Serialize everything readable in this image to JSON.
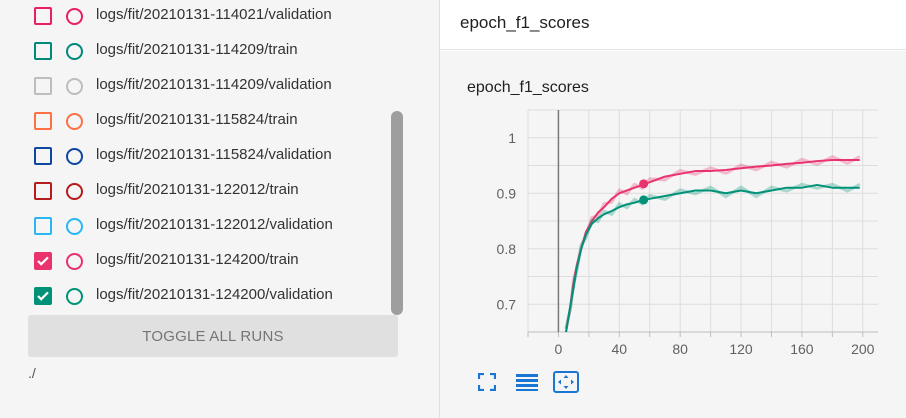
{
  "runs": [
    {
      "label": "logs/fit/20210131-114021/validation",
      "color": "#e91e63",
      "checked": false
    },
    {
      "label": "logs/fit/20210131-114209/train",
      "color": "#00897b",
      "checked": false
    },
    {
      "label": "logs/fit/20210131-114209/validation",
      "color": "#bdbdbd",
      "checked": false
    },
    {
      "label": "logs/fit/20210131-115824/train",
      "color": "#ff7043",
      "checked": false
    },
    {
      "label": "logs/fit/20210131-115824/validation",
      "color": "#0d47a1",
      "checked": false
    },
    {
      "label": "logs/fit/20210131-122012/train",
      "color": "#b71c1c",
      "checked": false
    },
    {
      "label": "logs/fit/20210131-122012/validation",
      "color": "#29b6f6",
      "checked": false
    },
    {
      "label": "logs/fit/20210131-124200/train",
      "color": "#e8336c",
      "checked": true
    },
    {
      "label": "logs/fit/20210131-124200/validation",
      "color": "#009278",
      "checked": true
    }
  ],
  "toggle_button": "TOGGLE ALL RUNS",
  "log_path": "./",
  "card": {
    "title": "epoch_f1_scores"
  },
  "toolbar": {
    "fullscreen_icon": "fullscreen-icon",
    "legend_icon": "toggle-log-scale-icon",
    "fit_icon": "fit-domain-icon"
  },
  "chart_data": {
    "type": "line",
    "title": "epoch_f1_scores",
    "xlabel": "",
    "ylabel": "",
    "xlim": [
      -20,
      210
    ],
    "ylim": [
      0.65,
      1.05
    ],
    "x_ticks": [
      "0",
      "40",
      "80",
      "120",
      "160",
      "200"
    ],
    "y_ticks": [
      "0.7",
      "0.8",
      "0.9",
      "1"
    ],
    "grid": true,
    "series": [
      {
        "color": "#e8336c",
        "x": [
          5,
          8,
          10,
          12,
          15,
          18,
          22,
          26,
          30,
          35,
          40,
          45,
          50,
          55,
          60,
          70,
          80,
          90,
          100,
          110,
          120,
          130,
          140,
          150,
          160,
          170,
          180,
          190,
          198
        ],
        "y": [
          0.65,
          0.7,
          0.74,
          0.77,
          0.8,
          0.83,
          0.85,
          0.865,
          0.875,
          0.89,
          0.9,
          0.905,
          0.91,
          0.915,
          0.92,
          0.93,
          0.935,
          0.94,
          0.94,
          0.942,
          0.945,
          0.948,
          0.95,
          0.953,
          0.955,
          0.958,
          0.96,
          0.96,
          0.96
        ]
      },
      {
        "color": "#009278",
        "x": [
          5,
          8,
          10,
          12,
          15,
          18,
          22,
          26,
          30,
          35,
          40,
          45,
          50,
          55,
          60,
          70,
          80,
          90,
          100,
          110,
          120,
          130,
          140,
          150,
          160,
          170,
          180,
          190,
          198
        ],
        "y": [
          0.65,
          0.7,
          0.73,
          0.765,
          0.8,
          0.825,
          0.845,
          0.855,
          0.862,
          0.868,
          0.875,
          0.88,
          0.883,
          0.887,
          0.89,
          0.895,
          0.9,
          0.905,
          0.905,
          0.9,
          0.905,
          0.9,
          0.905,
          0.91,
          0.91,
          0.915,
          0.91,
          0.91,
          0.91
        ]
      }
    ],
    "markers": [
      {
        "x": 56,
        "y": 0.917,
        "color": "#e8336c"
      },
      {
        "x": 56,
        "y": 0.888,
        "color": "#009278"
      }
    ]
  }
}
